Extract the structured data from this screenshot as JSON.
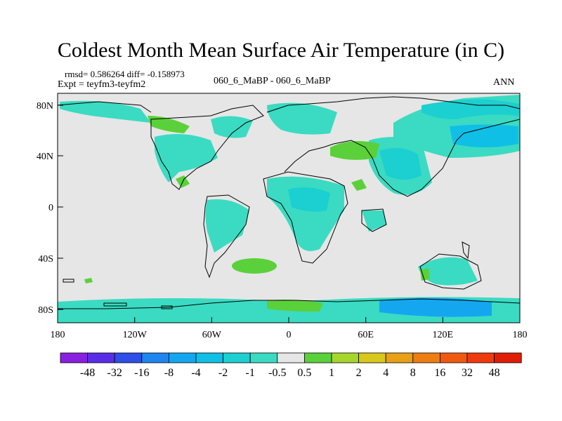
{
  "title": "Coldest Month Mean Surface Air Temperature (in C)",
  "stats": "rmsd= 0.586264 diff= -0.158973",
  "experiment": "Expt = teyfm3-teyfm2",
  "case_label": "060_6_MaBP - 060_6_MaBP",
  "season": "ANN",
  "colors": {
    "background": "#e6e6e6",
    "coast": "#000000"
  },
  "chart_data": {
    "type": "heatmap",
    "projection": "cylindrical-equidistant",
    "lon_range": [
      -180,
      180
    ],
    "lat_range": [
      -90,
      90
    ],
    "x_ticks": [
      "180",
      "120W",
      "60W",
      "0",
      "60E",
      "120E",
      "180"
    ],
    "y_ticks": [
      "80N",
      "40N",
      "0",
      "40S",
      "80S"
    ],
    "colorbar": {
      "labels": [
        "-48",
        "-32",
        "-16",
        "-8",
        "-4",
        "-2",
        "-1",
        "-0.5",
        "0.5",
        "1",
        "2",
        "4",
        "8",
        "16",
        "32",
        "48"
      ],
      "colors": [
        "#8b1fe0",
        "#5a2ee6",
        "#2e4fe8",
        "#1f86f0",
        "#14a7f0",
        "#10bfe6",
        "#1ccfd0",
        "#3adbc2",
        "#e6e6e6",
        "#5ad13a",
        "#a6d62c",
        "#d8c81e",
        "#e8a016",
        "#ee7d12",
        "#f05a10",
        "#ee3a0c",
        "#e01e08"
      ]
    }
  }
}
